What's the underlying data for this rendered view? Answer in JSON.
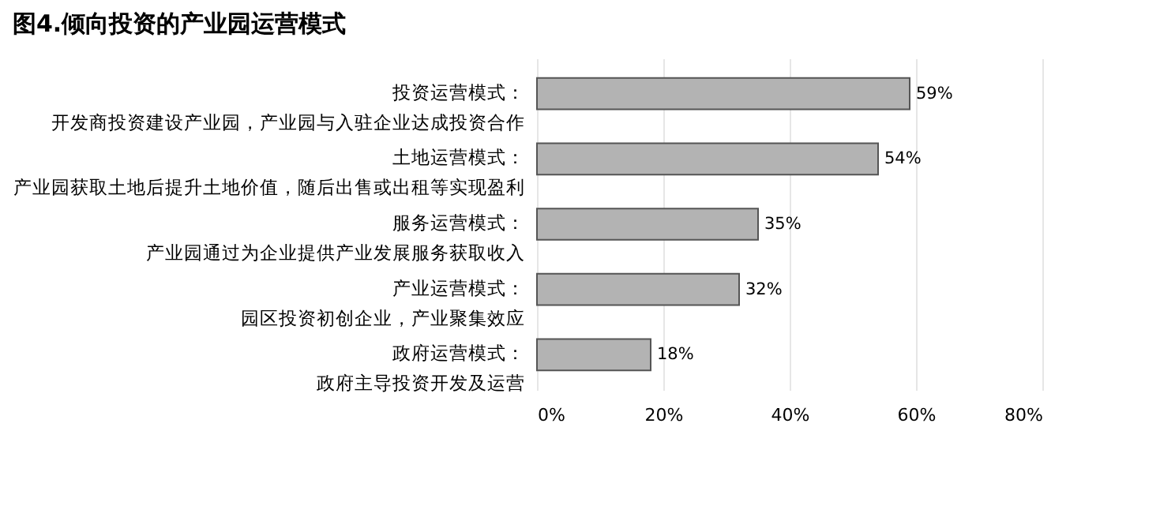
{
  "chart_data": {
    "type": "bar",
    "orientation": "horizontal",
    "title": "图4.倾向投资的产业园运营模式",
    "categories": [
      "投资运营模式：开发商投资建设产业园，产业园与入驻企业达成投资合作",
      "土地运营模式：产业园获取土地后提升土地价值，随后出售或出租等实现盈利",
      "服务运营模式：产业园通过为企业提供产业发展服务获取收入",
      "产业运营模式：园区投资初创企业，产业聚集效应",
      "政府运营模式：政府主导投资开发及运营"
    ],
    "values": [
      59,
      54,
      35,
      32,
      18
    ],
    "value_labels": [
      "59%",
      "54%",
      "35%",
      "32%",
      "18%"
    ],
    "color": "#b3b3b3",
    "xlim": [
      0,
      80
    ],
    "xticks": [
      {
        "value": 0,
        "label": "0%"
      },
      {
        "value": 20,
        "label": "20%"
      },
      {
        "value": 40,
        "label": "40%"
      },
      {
        "value": 60,
        "label": "60%"
      },
      {
        "value": 80,
        "label": "80%"
      }
    ],
    "grid": "x"
  }
}
